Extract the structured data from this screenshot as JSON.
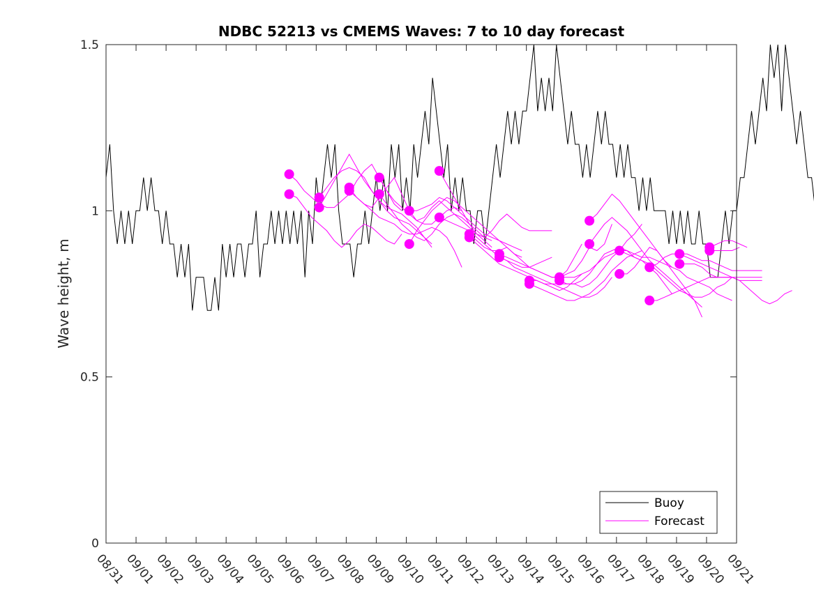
{
  "chart_data": {
    "type": "line",
    "title": "NDBC 52213 vs CMEMS Waves: 7 to 10 day forecast",
    "xlabel": "",
    "ylabel": "Wave height, m",
    "ylim": [
      0,
      1.5
    ],
    "xlim_days": [
      0,
      21
    ],
    "yticks": [
      0,
      0.5,
      1,
      1.5
    ],
    "ytick_labels": [
      "0",
      "0.5",
      "1",
      "1.5"
    ],
    "xtick_labels": [
      "08/31",
      "09/01",
      "09/02",
      "09/03",
      "09/04",
      "09/05",
      "09/06",
      "09/07",
      "09/08",
      "09/09",
      "09/10",
      "09/11",
      "09/12",
      "09/13",
      "09/14",
      "09/15",
      "09/16",
      "09/17",
      "09/18",
      "09/19",
      "09/20",
      "09/21"
    ],
    "grid": false,
    "legend": {
      "position": "bottom-right",
      "entries": [
        {
          "label": "Buoy",
          "color": "#000000"
        },
        {
          "label": "Forecast",
          "color": "#ff00ff"
        }
      ]
    },
    "colors": {
      "buoy": "#000000",
      "forecast": "#ff00ff",
      "axis": "#262626"
    },
    "series": [
      {
        "name": "Buoy",
        "x_step_days": 0.125,
        "values": [
          1.1,
          1.2,
          1.0,
          0.9,
          1.0,
          0.9,
          1.0,
          0.9,
          1.0,
          1.0,
          1.1,
          1.0,
          1.1,
          1.0,
          1.0,
          0.9,
          1.0,
          0.9,
          0.9,
          0.8,
          0.9,
          0.8,
          0.9,
          0.7,
          0.8,
          0.8,
          0.8,
          0.7,
          0.7,
          0.8,
          0.7,
          0.9,
          0.8,
          0.9,
          0.8,
          0.9,
          0.9,
          0.8,
          0.9,
          0.9,
          1.0,
          0.8,
          0.9,
          0.9,
          1.0,
          0.9,
          1.0,
          0.9,
          1.0,
          0.9,
          1.0,
          0.9,
          1.0,
          0.8,
          1.0,
          0.9,
          1.1,
          1.0,
          1.1,
          1.2,
          1.1,
          1.2,
          1.0,
          0.9,
          0.9,
          0.9,
          0.8,
          0.9,
          0.9,
          1.0,
          0.9,
          1.0,
          1.1,
          1.0,
          1.1,
          1.0,
          1.2,
          1.1,
          1.2,
          1.0,
          1.1,
          1.0,
          1.2,
          1.1,
          1.2,
          1.3,
          1.2,
          1.4,
          1.3,
          1.2,
          1.1,
          1.2,
          1.0,
          1.1,
          1.0,
          1.1,
          1.0,
          1.0,
          0.9,
          1.0,
          1.0,
          0.9,
          1.0,
          1.1,
          1.2,
          1.1,
          1.2,
          1.3,
          1.2,
          1.3,
          1.2,
          1.3,
          1.3,
          1.4,
          1.5,
          1.3,
          1.4,
          1.3,
          1.4,
          1.3,
          1.5,
          1.4,
          1.3,
          1.2,
          1.3,
          1.2,
          1.2,
          1.1,
          1.2,
          1.1,
          1.2,
          1.3,
          1.2,
          1.3,
          1.2,
          1.2,
          1.1,
          1.2,
          1.1,
          1.2,
          1.1,
          1.1,
          1.0,
          1.1,
          1.0,
          1.1,
          1.0,
          1.0,
          1.0,
          1.0,
          0.9,
          1.0,
          0.9,
          1.0,
          0.9,
          1.0,
          0.9,
          0.9,
          1.0,
          0.9,
          0.9,
          0.8,
          0.8,
          0.8,
          0.9,
          1.0,
          0.9,
          1.0,
          1.0,
          1.1,
          1.1,
          1.2,
          1.3,
          1.2,
          1.3,
          1.4,
          1.3,
          1.5,
          1.4,
          1.5,
          1.3,
          1.5,
          1.4,
          1.3,
          1.2,
          1.3,
          1.2,
          1.1,
          1.1,
          1.0,
          1.1,
          1.0,
          1.1,
          1.2,
          1.3,
          1.2,
          1.2,
          1.1,
          1.2,
          1.0,
          1.1,
          1.0,
          1.0,
          1.0,
          0.9,
          1.0,
          0.9,
          0.9,
          0.9,
          0.8,
          0.9,
          0.7,
          0.8,
          0.9,
          1.0,
          0.9,
          0.9
        ]
      },
      {
        "name": "Forecast",
        "x_step_days": 0.25,
        "runs": [
          {
            "start_day": 6.1,
            "values": [
              1.11,
              1.09,
              1.06,
              1.04,
              1.02,
              1.01,
              1.01,
              1.03,
              1.05,
              1.09,
              1.12,
              1.14,
              1.1,
              1.06,
              1.02,
              1.0
            ]
          },
          {
            "start_day": 6.1,
            "values": [
              1.05,
              1.04,
              1.01,
              0.98,
              0.96,
              0.94,
              0.91,
              0.89,
              0.91,
              0.94,
              0.96,
              0.95,
              0.93,
              0.91,
              0.9,
              0.93
            ]
          },
          {
            "start_day": 7.1,
            "values": [
              1.04,
              1.07,
              1.1,
              1.12,
              1.13,
              1.12,
              1.1,
              1.06,
              1.03,
              1.01,
              1.0,
              0.99,
              0.97,
              0.95,
              0.92,
              0.9
            ]
          },
          {
            "start_day": 7.1,
            "values": [
              1.01,
              1.05,
              1.09,
              1.13,
              1.17,
              1.13,
              1.09,
              1.06,
              1.03,
              1.0,
              0.98,
              0.97,
              0.96,
              0.94,
              0.92,
              0.89
            ]
          },
          {
            "start_day": 8.1,
            "values": [
              1.07,
              1.04,
              1.02,
              1.01,
              1.04,
              1.07,
              1.1,
              1.05,
              1.0,
              0.97,
              0.96,
              0.96,
              0.98,
              1.0,
              1.01,
              1.0
            ]
          },
          {
            "start_day": 8.1,
            "values": [
              1.06,
              1.04,
              1.02,
              1.0,
              0.98,
              0.97,
              0.96,
              0.94,
              0.93,
              0.93,
              0.94,
              0.95,
              0.94,
              0.92,
              0.88,
              0.83
            ]
          },
          {
            "start_day": 9.1,
            "values": [
              1.1,
              1.06,
              1.03,
              1.01,
              0.99,
              0.97,
              0.98,
              1.01,
              1.03,
              1.01,
              0.99,
              0.97,
              0.95,
              0.93,
              0.91,
              0.89
            ]
          },
          {
            "start_day": 9.1,
            "values": [
              1.05,
              1.02,
              0.99,
              0.96,
              0.94,
              0.92,
              0.91,
              0.93,
              0.96,
              0.98,
              0.99,
              0.98,
              0.96,
              0.94,
              0.92,
              0.91
            ]
          },
          {
            "start_day": 10.1,
            "values": [
              1.0,
              1.0,
              1.01,
              1.02,
              1.04,
              1.03,
              1.01,
              0.99,
              0.97,
              0.95,
              0.93,
              0.92,
              0.91,
              0.9,
              0.89,
              0.88
            ]
          },
          {
            "start_day": 10.1,
            "values": [
              0.9,
              0.94,
              0.97,
              1.0,
              1.02,
              1.04,
              1.03,
              1.01,
              0.99,
              0.97,
              0.95,
              0.93,
              0.91,
              0.89,
              0.87,
              0.86
            ]
          },
          {
            "start_day": 11.1,
            "values": [
              1.12,
              1.08,
              1.04,
              1.0,
              0.96,
              0.93,
              0.92,
              0.94,
              0.97,
              0.99,
              0.97,
              0.95,
              0.94,
              0.94,
              0.94,
              0.94
            ]
          },
          {
            "start_day": 11.1,
            "values": [
              0.98,
              0.97,
              0.96,
              0.95,
              0.94,
              0.92,
              0.9,
              0.88,
              0.86,
              0.85,
              0.84,
              0.83,
              0.83,
              0.84,
              0.85,
              0.86
            ]
          },
          {
            "start_day": 12.1,
            "values": [
              0.93,
              0.91,
              0.89,
              0.88,
              0.88,
              0.89,
              0.87,
              0.85,
              0.83,
              0.82,
              0.81,
              0.8,
              0.8,
              0.82,
              0.86,
              0.9
            ]
          },
          {
            "start_day": 12.1,
            "values": [
              0.92,
              0.9,
              0.88,
              0.86,
              0.84,
              0.83,
              0.82,
              0.81,
              0.8,
              0.79,
              0.78,
              0.77,
              0.76,
              0.77,
              0.79,
              0.81
            ]
          },
          {
            "start_day": 13.1,
            "values": [
              0.87,
              0.86,
              0.85,
              0.84,
              0.83,
              0.82,
              0.81,
              0.8,
              0.8,
              0.81,
              0.82,
              0.85,
              0.89,
              0.88,
              0.9,
              0.96
            ]
          },
          {
            "start_day": 13.1,
            "values": [
              0.86,
              0.85,
              0.83,
              0.82,
              0.81,
              0.8,
              0.79,
              0.78,
              0.77,
              0.76,
              0.75,
              0.74,
              0.74,
              0.75,
              0.77,
              0.8
            ]
          },
          {
            "start_day": 14.1,
            "values": [
              0.79,
              0.79,
              0.78,
              0.78,
              0.78,
              0.78,
              0.78,
              0.77,
              0.78,
              0.8,
              0.83,
              0.86,
              0.88,
              0.91,
              0.93,
              0.96
            ]
          },
          {
            "start_day": 14.1,
            "values": [
              0.78,
              0.77,
              0.76,
              0.75,
              0.74,
              0.73,
              0.73,
              0.74,
              0.75,
              0.77,
              0.79,
              0.82,
              0.84,
              0.86,
              0.87,
              0.88
            ]
          },
          {
            "start_day": 15.1,
            "values": [
              0.8,
              0.8,
              0.8,
              0.81,
              0.82,
              0.84,
              0.86,
              0.87,
              0.88,
              0.88,
              0.87,
              0.86,
              0.86,
              0.85,
              0.84,
              0.83
            ]
          },
          {
            "start_day": 15.1,
            "values": [
              0.79,
              0.78,
              0.78,
              0.79,
              0.81,
              0.84,
              0.87,
              0.88,
              0.89,
              0.88,
              0.86,
              0.85,
              0.83,
              0.81,
              0.78,
              0.75
            ]
          },
          {
            "start_day": 16.1,
            "values": [
              0.97,
              0.99,
              1.02,
              1.05,
              1.03,
              1.0,
              0.97,
              0.94,
              0.91,
              0.88,
              0.85,
              0.82,
              0.79,
              0.76,
              0.73,
              0.71
            ]
          },
          {
            "start_day": 16.1,
            "values": [
              0.9,
              0.93,
              0.96,
              0.98,
              0.96,
              0.94,
              0.91,
              0.88,
              0.85,
              0.83,
              0.81,
              0.79,
              0.77,
              0.75,
              0.73,
              0.68
            ]
          },
          {
            "start_day": 17.1,
            "values": [
              0.88,
              0.87,
              0.86,
              0.85,
              0.84,
              0.82,
              0.8,
              0.78,
              0.76,
              0.75,
              0.74,
              0.74,
              0.75,
              0.77,
              0.78,
              0.8
            ]
          },
          {
            "start_day": 17.1,
            "values": [
              0.81,
              0.81,
              0.83,
              0.86,
              0.89,
              0.88,
              0.85,
              0.83,
              0.82,
              0.8,
              0.79,
              0.78,
              0.77,
              0.75,
              0.74,
              0.73
            ]
          },
          {
            "start_day": 18.1,
            "values": [
              0.83,
              0.84,
              0.86,
              0.87,
              0.87,
              0.87,
              0.86,
              0.85,
              0.85,
              0.84,
              0.83,
              0.82,
              0.82,
              0.82,
              0.82,
              0.82
            ]
          },
          {
            "start_day": 18.1,
            "values": [
              0.73,
              0.73,
              0.74,
              0.75,
              0.76,
              0.77,
              0.78,
              0.79,
              0.8,
              0.8,
              0.8,
              0.8,
              0.79,
              0.79,
              0.79,
              0.79
            ]
          },
          {
            "start_day": 19.1,
            "values": [
              0.87,
              0.86,
              0.85,
              0.84,
              0.83,
              0.82,
              0.81,
              0.8,
              0.79,
              0.77,
              0.75,
              0.73,
              0.72,
              0.73,
              0.75,
              0.76
            ]
          },
          {
            "start_day": 19.1,
            "values": [
              0.84,
              0.84,
              0.84,
              0.83,
              0.81,
              0.8,
              0.8,
              0.8,
              0.8,
              0.8,
              0.8,
              0.8
            ]
          },
          {
            "start_day": 20.1,
            "values": [
              0.89,
              0.9,
              0.91,
              0.91,
              0.9,
              0.89
            ]
          },
          {
            "start_day": 20.1,
            "values": [
              0.88,
              0.88,
              0.88,
              0.88,
              0.89
            ]
          }
        ]
      }
    ]
  }
}
